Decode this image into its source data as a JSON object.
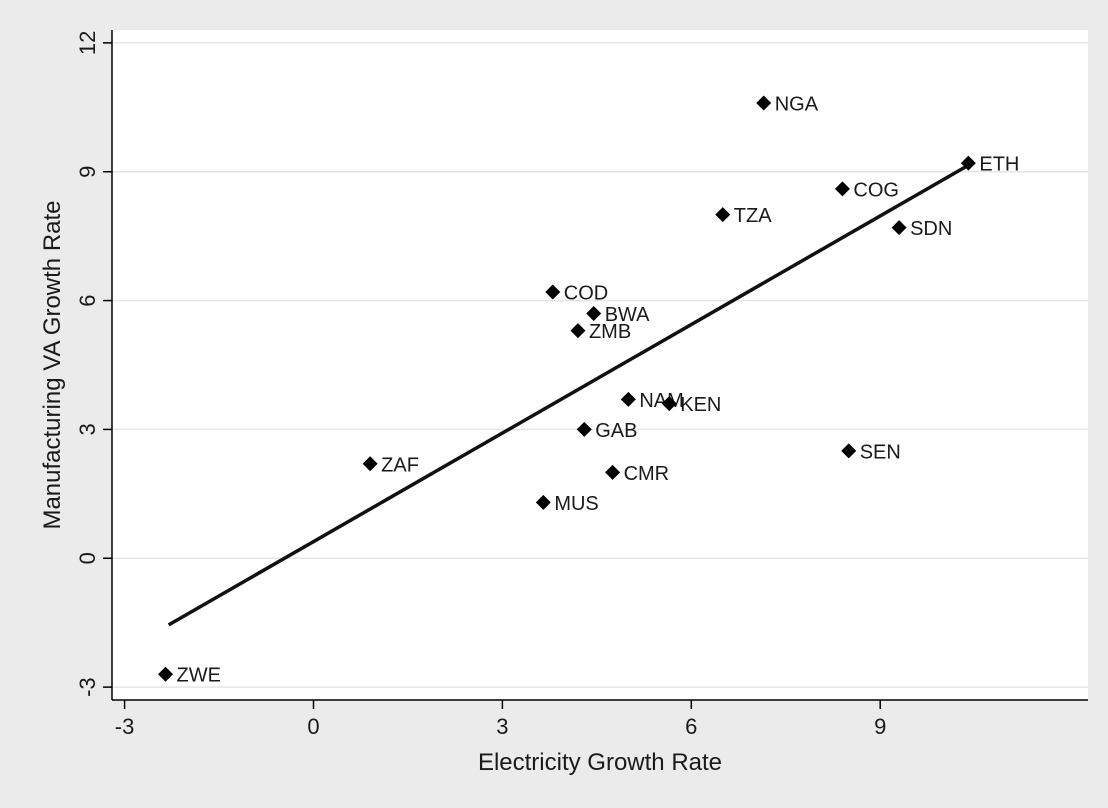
{
  "chart_data": {
    "type": "scatter",
    "title": "",
    "xlabel": "Electricity Growth Rate",
    "ylabel": "Manufacturing VA Growth Rate",
    "xlim": [
      -3.2,
      12.3
    ],
    "ylim": [
      -3.3,
      12.3
    ],
    "xticks": [
      -3,
      0,
      3,
      6,
      9
    ],
    "xtick_labels": [
      "-3",
      "0",
      "3",
      "6",
      "9"
    ],
    "yticks": [
      -3,
      0,
      3,
      6,
      9,
      12
    ],
    "ytick_labels": [
      "-3",
      "0",
      "3",
      "6",
      "9",
      "12"
    ],
    "grid": "horizontal",
    "legend": "none",
    "marker": "diamond",
    "colors": {
      "outer_background": "#ebebeb",
      "plot_background": "#ffffff",
      "gridline": "#e6e6e6",
      "marker": "#000000",
      "fit_line": "#111111",
      "text": "#1a1a1a"
    },
    "points": [
      {
        "label": "NGA",
        "x": 7.15,
        "y": 10.6
      },
      {
        "label": "ETH",
        "x": 10.4,
        "y": 9.2
      },
      {
        "label": "COG",
        "x": 8.4,
        "y": 8.6
      },
      {
        "label": "TZA",
        "x": 6.5,
        "y": 8.0
      },
      {
        "label": "SDN",
        "x": 9.3,
        "y": 7.7
      },
      {
        "label": "COD",
        "x": 3.8,
        "y": 6.2
      },
      {
        "label": "BWA",
        "x": 4.45,
        "y": 5.7
      },
      {
        "label": "ZMB",
        "x": 4.2,
        "y": 5.3
      },
      {
        "label": "NAM",
        "x": 5.0,
        "y": 3.7
      },
      {
        "label": "KEN",
        "x": 5.65,
        "y": 3.6
      },
      {
        "label": "GAB",
        "x": 4.3,
        "y": 3.0
      },
      {
        "label": "SEN",
        "x": 8.5,
        "y": 2.5
      },
      {
        "label": "ZAF",
        "x": 0.9,
        "y": 2.2
      },
      {
        "label": "CMR",
        "x": 4.75,
        "y": 2.0
      },
      {
        "label": "MUS",
        "x": 3.65,
        "y": 1.3
      },
      {
        "label": "ZWE",
        "x": -2.35,
        "y": -2.7
      }
    ],
    "fit_line": {
      "x": [
        -2.3,
        10.4
      ],
      "y": [
        -1.55,
        9.15
      ]
    }
  }
}
